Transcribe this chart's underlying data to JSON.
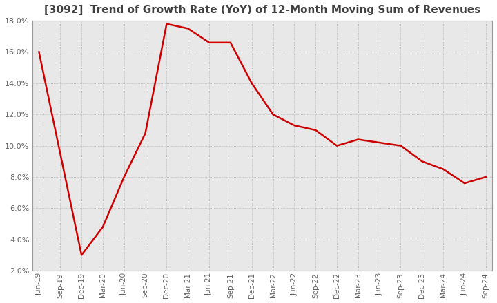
{
  "title": "[3092]  Trend of Growth Rate (YoY) of 12-Month Moving Sum of Revenues",
  "x_labels": [
    "Jun-19",
    "Sep-19",
    "Dec-19",
    "Mar-20",
    "Jun-20",
    "Sep-20",
    "Dec-20",
    "Mar-21",
    "Jun-21",
    "Sep-21",
    "Dec-21",
    "Mar-22",
    "Jun-22",
    "Sep-22",
    "Dec-22",
    "Mar-23",
    "Jun-23",
    "Sep-23",
    "Dec-23",
    "Mar-24",
    "Jun-24",
    "Sep-24"
  ],
  "y_values": [
    16.0,
    9.5,
    3.0,
    4.8,
    8.0,
    10.8,
    17.8,
    17.5,
    16.6,
    16.6,
    14.0,
    12.0,
    11.3,
    11.0,
    10.0,
    10.4,
    10.2,
    10.0,
    9.0,
    8.5,
    7.6,
    8.0
  ],
  "ylim": [
    2.0,
    18.0
  ],
  "yticks": [
    2.0,
    4.0,
    6.0,
    8.0,
    10.0,
    12.0,
    14.0,
    16.0,
    18.0
  ],
  "line_color": "#cc0000",
  "bg_color": "#ffffff",
  "plot_bg_color": "#e8e8e8",
  "grid_color": "#aaaaaa",
  "title_color": "#404040",
  "tick_color": "#606060",
  "title_fontsize": 11
}
